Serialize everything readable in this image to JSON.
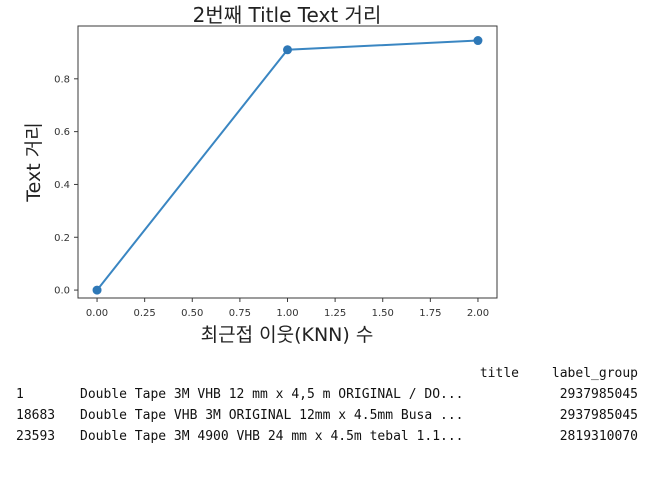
{
  "chart_data": {
    "type": "line",
    "title": "2번째 Title Text 거리",
    "xlabel": "최근접 이웃(KNN) 수",
    "ylabel": "Text 거리",
    "x": [
      0.0,
      1.0,
      2.0
    ],
    "series": [
      {
        "values": [
          0.0,
          0.91,
          0.945
        ]
      }
    ],
    "xlim": [
      -0.1,
      2.1
    ],
    "ylim": [
      -0.03,
      1.0
    ],
    "xticks": [
      0.0,
      0.25,
      0.5,
      0.75,
      1.0,
      1.25,
      1.5,
      1.75,
      2.0
    ],
    "xtick_labels": [
      "0.00",
      "0.25",
      "0.50",
      "0.75",
      "1.00",
      "1.25",
      "1.50",
      "1.75",
      "2.00"
    ],
    "yticks": [
      0.0,
      0.2,
      0.4,
      0.6,
      0.8
    ],
    "ytick_labels": [
      "0.0",
      "0.2",
      "0.4",
      "0.6",
      "0.8"
    ],
    "line_color": "#3a86c2",
    "marker_color": "#2e78b7",
    "grid": false,
    "legend": "none"
  },
  "table": {
    "columns": [
      "title",
      "label_group"
    ],
    "rows": [
      {
        "index": "1",
        "title": "Double Tape 3M VHB 12 mm x 4,5 m ORIGINAL / DO...",
        "label_group": "2937985045"
      },
      {
        "index": "18683",
        "title": "Double Tape VHB 3M ORIGINAL 12mm x 4.5mm Busa ...",
        "label_group": "2937985045"
      },
      {
        "index": "23593",
        "title": "Double Tape 3M 4900 VHB 24 mm x 4.5m tebal 1.1...",
        "label_group": "2819310070"
      }
    ]
  }
}
